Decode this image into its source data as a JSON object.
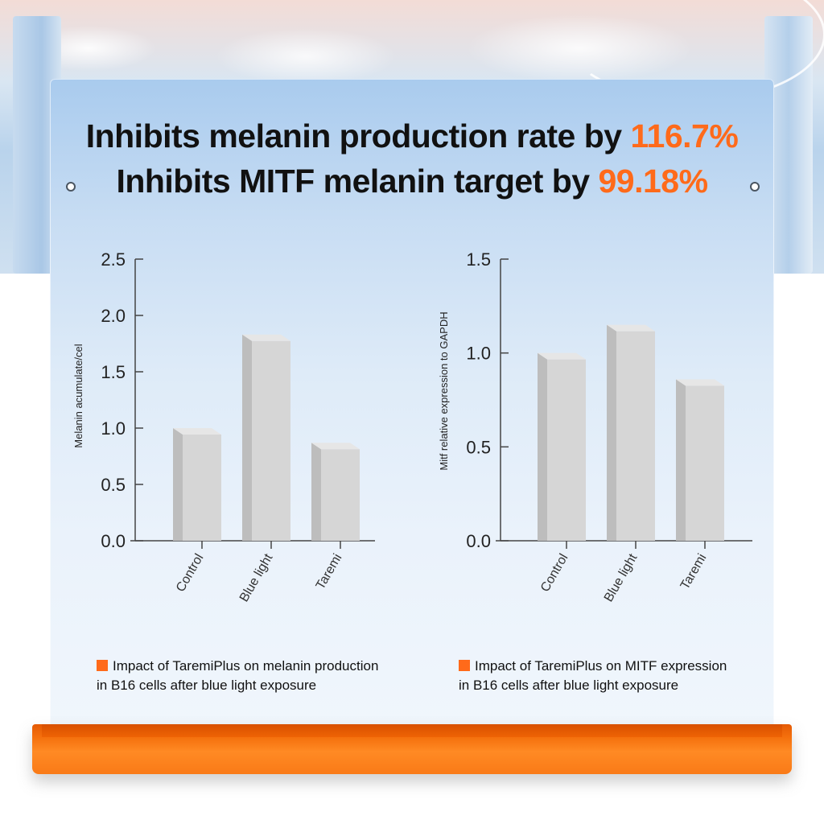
{
  "headline": {
    "line1_text": "Inhibits melanin production rate by ",
    "line1_value": "116.7%",
    "line2_text": "Inhibits MITF melanin target by ",
    "line2_value": "99.18%"
  },
  "colors": {
    "accent": "#ff6a1a",
    "bar_front": "#d6d6d6",
    "bar_side": "#bdbdbd",
    "bar_top": "#e6e6e6"
  },
  "chart_data": [
    {
      "type": "bar",
      "categories": [
        "Control",
        "Blue light",
        "Taremi"
      ],
      "values": [
        1.0,
        1.83,
        0.87
      ],
      "ylabel": "Melanin acumulate/cel",
      "xlabel": "",
      "ylim": [
        0,
        2.5
      ],
      "yticks": [
        "2.5",
        "2.0",
        "1.5",
        "1.0",
        "0.5",
        "0.0"
      ],
      "grid": false,
      "legend": "Impact of TaremiPlus on melanin production in B16 cells after blue light exposure"
    },
    {
      "type": "bar",
      "categories": [
        "Control",
        "Blue light",
        "Taremi"
      ],
      "values": [
        1.0,
        1.15,
        0.86
      ],
      "ylabel": "Mitf relative expression to GAPDH",
      "xlabel": "",
      "ylim": [
        0,
        1.5
      ],
      "yticks": [
        "1.5",
        "1.0",
        "0.5",
        "0.0"
      ],
      "grid": false,
      "legend": "Impact of TaremiPlus on MITF expression in B16 cells after blue light exposure"
    }
  ],
  "captions": {
    "left_line1": "Impact of TaremiPlus on melanin production",
    "left_line2": "in B16 cells after blue light exposure",
    "right_line1": "Impact of TaremiPlus on MITF expression",
    "right_line2": "in B16 cells after blue light exposure"
  }
}
